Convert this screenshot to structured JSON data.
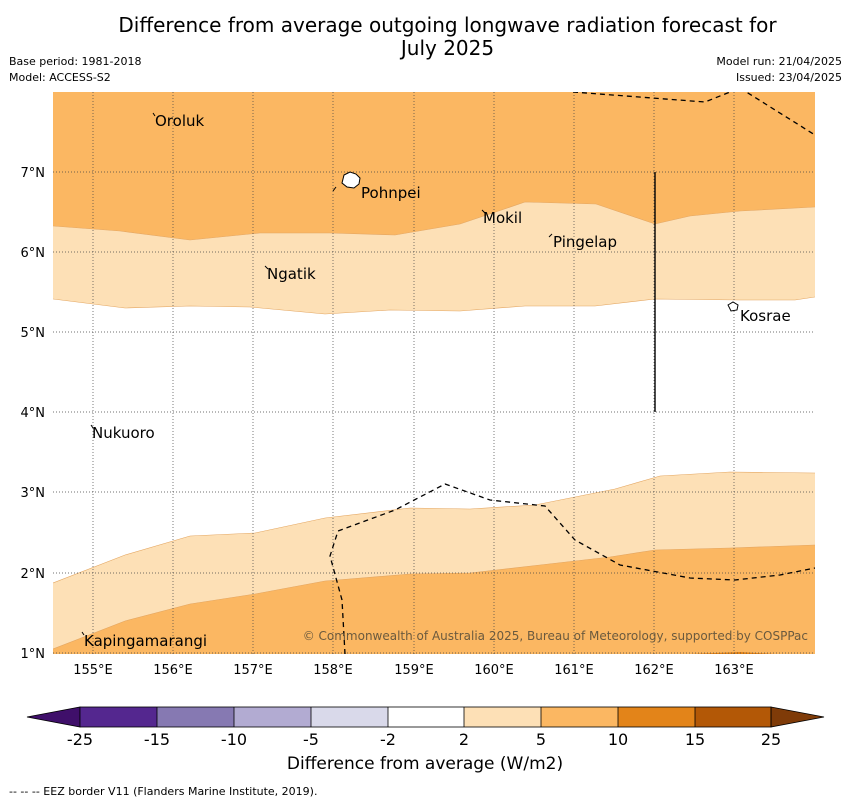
{
  "header": {
    "title_line1": "Difference from average outgoing longwave radiation forecast for",
    "title_line2": "July 2025",
    "base_period": "Base period: 1981-2018",
    "model": "Model: ACCESS-S2",
    "model_run": "Model run: 21/04/2025",
    "issued": "Issued: 23/04/2025"
  },
  "map": {
    "lon_labels": [
      "155°E",
      "156°E",
      "157°E",
      "158°E",
      "159°E",
      "160°E",
      "161°E",
      "162°E",
      "163°E"
    ],
    "lat_labels": [
      "7°N",
      "6°N",
      "5°N",
      "4°N",
      "3°N",
      "2°N",
      "1°N"
    ],
    "places": [
      "Oroluk",
      "Pohnpei",
      "Mokil",
      "Pingelap",
      "Ngatik",
      "Kosrae",
      "Nukuoro",
      "Kapingamarangi"
    ],
    "copyright": "© Commonwealth of Australia 2025, Bureau of Meteorology, supported by COSPPac",
    "fill_colors": {
      "c2_5": "#fde0b6",
      "c5_10": "#fbb762",
      "c10_15": "#e38419"
    }
  },
  "colorbar": {
    "ticks": [
      "-25",
      "-15",
      "-10",
      "-5",
      "-2",
      "2",
      "5",
      "10",
      "15",
      "25"
    ],
    "colors": [
      "#3f0f6a",
      "#54278f",
      "#8679b2",
      "#b2abd2",
      "#d9d9ea",
      "#ffffff",
      "#fde0b6",
      "#fbb762",
      "#e38419",
      "#b35806",
      "#7f3b08"
    ],
    "title": "Difference from average (W/m2)"
  },
  "footnote": "--  --  -- EEZ border V11 (Flanders Marine Institute, 2019)."
}
